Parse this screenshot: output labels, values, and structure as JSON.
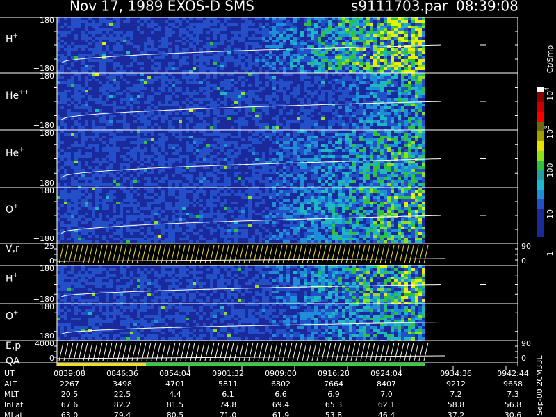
{
  "header": {
    "title": "Nov 17, 1989    EXOS-D SMS",
    "file": "s9111703.par",
    "time": "08:39:08"
  },
  "panels": [
    {
      "label": "H",
      "sup": "+",
      "ymax": "180",
      "ymin": "−180"
    },
    {
      "label": "He",
      "sup": "++",
      "ymax": "180",
      "ymin": "−180"
    },
    {
      "label": "He",
      "sup": "+",
      "ymax": "180",
      "ymin": "−180"
    },
    {
      "label": "O",
      "sup": "+",
      "ymax": "180",
      "ymin": "−180"
    },
    {
      "label": "V,r",
      "ymax": "25",
      "ymin": "0",
      "right_ymax": "90",
      "right_ymin": "0"
    },
    {
      "label": "H",
      "sup": "+",
      "ymax": "180",
      "ymin": "−180"
    },
    {
      "label": "O",
      "sup": "+",
      "ymax": "180",
      "ymin": "−180"
    },
    {
      "label": "E,p",
      "extra_label": "QA",
      "ymax": "4000",
      "ymin": "0",
      "right_ymax": "90",
      "right_ymin": "0"
    }
  ],
  "colorbar": {
    "title": "Ct/Smp",
    "ticks": [
      {
        "base": "10",
        "exp": "4"
      },
      {
        "base": "10",
        "exp": "3"
      },
      {
        "base": "100"
      },
      {
        "base": "10"
      },
      {
        "base": "1"
      }
    ]
  },
  "table": {
    "rows": [
      {
        "label": "UT",
        "values": [
          "0839:08",
          "0846:36",
          "0854:04",
          "0901:32",
          "0909:00",
          "0916:28",
          "0924:04",
          "0934:36",
          "0942:44"
        ]
      },
      {
        "label": "ALT",
        "values": [
          "2267",
          "3498",
          "4701",
          "5811",
          "6802",
          "7664",
          "8407",
          "9212",
          "9658"
        ]
      },
      {
        "label": "MLT",
        "values": [
          "20.5",
          "22.5",
          "4.4",
          "6.1",
          "6.6",
          "6.9",
          "7.0",
          "7.2",
          "7.3"
        ]
      },
      {
        "label": "InLat",
        "values": [
          "67.6",
          "82.2",
          "81.5",
          "74.8",
          "69.4",
          "65.3",
          "62.1",
          "58.8",
          "56.8"
        ]
      },
      {
        "label": "MLat",
        "values": [
          "63.0",
          "79.4",
          "80.5",
          "71.0",
          "61.9",
          "53.8",
          "46.4",
          "37.2",
          "30.6"
        ]
      }
    ]
  },
  "footer_note": "Sep-00 2CM33L"
}
